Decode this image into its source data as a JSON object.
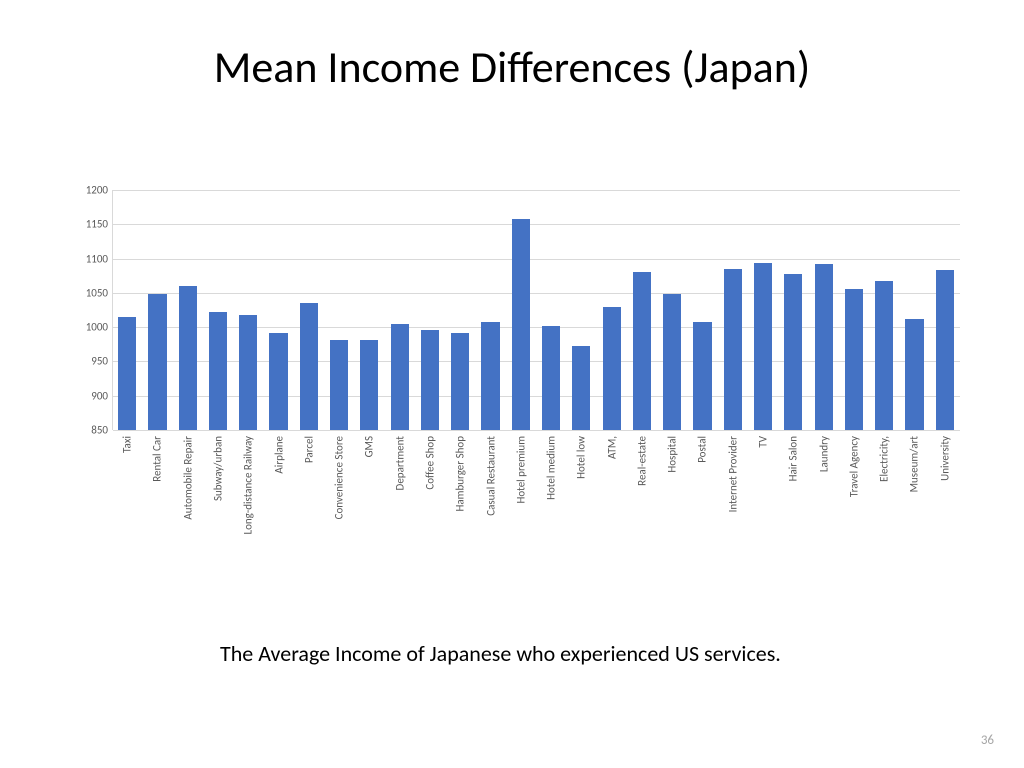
{
  "title": "Mean Income Differences (Japan)",
  "caption": "The Average Income of Japanese who experienced US services.",
  "page_number": "36",
  "chart": {
    "type": "bar",
    "ylim": [
      850,
      1200
    ],
    "ytick_step": 50,
    "yticks": [
      850,
      900,
      950,
      1000,
      1050,
      1100,
      1150,
      1200
    ],
    "bar_color": "#4472c4",
    "grid_color": "#d9d9d9",
    "axis_text_color": "#595959",
    "background_color": "#ffffff",
    "tick_fontsize": 11,
    "title_fontsize": 44,
    "caption_fontsize": 22,
    "bar_width_ratio": 0.6,
    "categories": [
      "Taxi",
      "Rental Car",
      "Automobile Repair",
      "Subway/urban",
      "Long-distance Railway",
      "Airplane",
      "Parcel",
      "Convenience Store",
      "GMS",
      "Department",
      "Coffee Shop",
      "Hamburger Shop",
      "Casual Restaurant",
      "Hotel premium",
      "Hotel medium",
      "Hotel low",
      "ATM,",
      "Real-estate",
      "Hospital",
      "Postal",
      "Internet Provider",
      "TV",
      "Hair Salon",
      "Laundry",
      "Travel Agency",
      "Electricity,",
      "Museum/art",
      "University"
    ],
    "values": [
      1015,
      1048,
      1060,
      1022,
      1018,
      992,
      1035,
      982,
      982,
      1005,
      996,
      992,
      1008,
      1158,
      1002,
      972,
      1030,
      1080,
      1048,
      1008,
      1085,
      1093,
      1077,
      1092,
      1055,
      1068,
      1012,
      1083
    ]
  }
}
